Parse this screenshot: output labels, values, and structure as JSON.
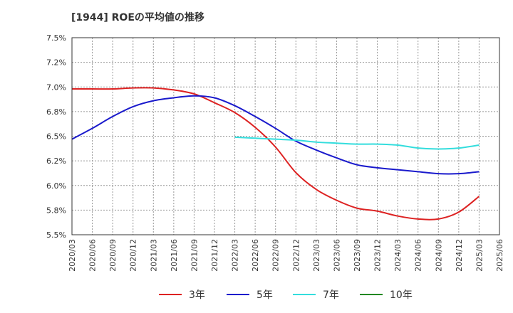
{
  "chart_data": {
    "type": "line",
    "title": "[1944]  ROEの平均値の推移",
    "xlabel": "",
    "ylabel": "",
    "ylim": [
      5.5,
      7.5
    ],
    "yticks": [
      5.5,
      5.75,
      6.0,
      6.25,
      6.5,
      6.75,
      7.0,
      7.25,
      7.5
    ],
    "ytick_labels": [
      "5.5%",
      "5.8%",
      "6.0%",
      "6.2%",
      "6.5%",
      "6.8%",
      "7.0%",
      "7.2%",
      "7.5%"
    ],
    "categories": [
      "2020/03",
      "2020/06",
      "2020/09",
      "2020/12",
      "2021/03",
      "2021/06",
      "2021/09",
      "2021/12",
      "2022/03",
      "2022/06",
      "2022/09",
      "2022/12",
      "2023/03",
      "2023/06",
      "2023/09",
      "2023/12",
      "2024/03",
      "2024/06",
      "2024/09",
      "2024/12",
      "2025/03",
      "2025/06"
    ],
    "grid": true,
    "legend_position": "bottom",
    "series": [
      {
        "name": "3年",
        "color": "#dd2222",
        "values": [
          6.98,
          6.98,
          6.98,
          6.99,
          6.99,
          6.97,
          6.93,
          6.84,
          6.74,
          6.59,
          6.39,
          6.13,
          5.96,
          5.85,
          5.77,
          5.74,
          5.69,
          5.66,
          5.66,
          5.73,
          5.89,
          null
        ]
      },
      {
        "name": "5年",
        "color": "#1a1acc",
        "values": [
          6.47,
          6.58,
          6.7,
          6.8,
          6.86,
          6.89,
          6.91,
          6.89,
          6.81,
          6.7,
          6.58,
          6.45,
          6.36,
          6.28,
          6.21,
          6.18,
          6.16,
          6.14,
          6.12,
          6.12,
          6.14,
          null
        ]
      },
      {
        "name": "7年",
        "color": "#33dddd",
        "values": [
          null,
          null,
          null,
          null,
          null,
          null,
          null,
          null,
          6.49,
          6.48,
          6.47,
          6.46,
          6.44,
          6.43,
          6.42,
          6.42,
          6.41,
          6.38,
          6.37,
          6.38,
          6.41,
          null
        ]
      },
      {
        "name": "10年",
        "color": "#228822",
        "values": [
          null,
          null,
          null,
          null,
          null,
          null,
          null,
          null,
          null,
          null,
          null,
          null,
          null,
          null,
          null,
          null,
          null,
          null,
          null,
          null,
          null,
          null
        ]
      }
    ]
  }
}
